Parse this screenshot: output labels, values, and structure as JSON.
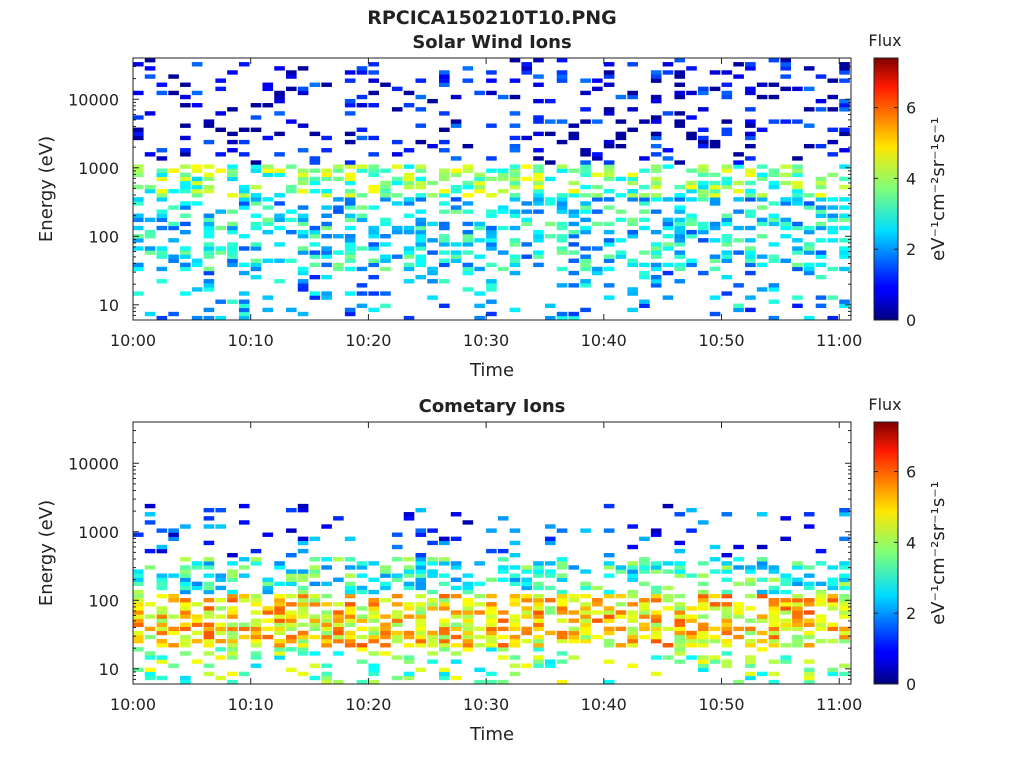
{
  "figure_title": "RPCICA150210T10.PNG",
  "colorbar": {
    "title": "Flux",
    "unit_label": "eV⁻¹cm⁻²sr⁻¹s⁻¹",
    "range": [
      0,
      7.4
    ],
    "ticks": [
      "0",
      "2",
      "4",
      "6"
    ],
    "colormap": "jet"
  },
  "chart_data": [
    {
      "type": "heatmap",
      "title": "Solar Wind Ions",
      "xlabel": "Time",
      "ylabel": "Energy (eV)",
      "x_range": [
        "10:00",
        "11:01"
      ],
      "x_ticks": [
        "10:00",
        "10:10",
        "10:20",
        "10:30",
        "10:40",
        "10:50",
        "11:00"
      ],
      "y_scale": "log",
      "y_range": [
        6,
        40000
      ],
      "y_ticks": [
        "10",
        "100",
        "1000",
        "10000"
      ],
      "bands": [
        {
          "e_min": 350,
          "e_max": 1100,
          "flux": 3.6,
          "density": 0.55
        },
        {
          "e_min": 30,
          "e_max": 350,
          "flux": 2.6,
          "density": 0.5
        },
        {
          "e_min": 6,
          "e_max": 30,
          "flux": 2.2,
          "density": 0.2
        },
        {
          "e_min": 1100,
          "e_max": 40000,
          "flux": 0.7,
          "density": 0.22
        }
      ]
    },
    {
      "type": "heatmap",
      "title": "Cometary Ions",
      "xlabel": "Time",
      "ylabel": "Energy (eV)",
      "x_range": [
        "10:00",
        "11:01"
      ],
      "x_ticks": [
        "10:00",
        "10:10",
        "10:20",
        "10:30",
        "10:40",
        "10:50",
        "11:00"
      ],
      "y_scale": "log",
      "y_range": [
        6,
        40000
      ],
      "y_ticks": [
        "10",
        "100",
        "1000",
        "10000"
      ],
      "bands": [
        {
          "e_min": 20,
          "e_max": 120,
          "flux": 4.8,
          "density": 0.8
        },
        {
          "e_min": 120,
          "e_max": 400,
          "flux": 3.0,
          "density": 0.5
        },
        {
          "e_min": 6,
          "e_max": 20,
          "flux": 3.6,
          "density": 0.3
        },
        {
          "e_min": 400,
          "e_max": 2500,
          "flux": 1.4,
          "density": 0.15
        }
      ]
    }
  ]
}
